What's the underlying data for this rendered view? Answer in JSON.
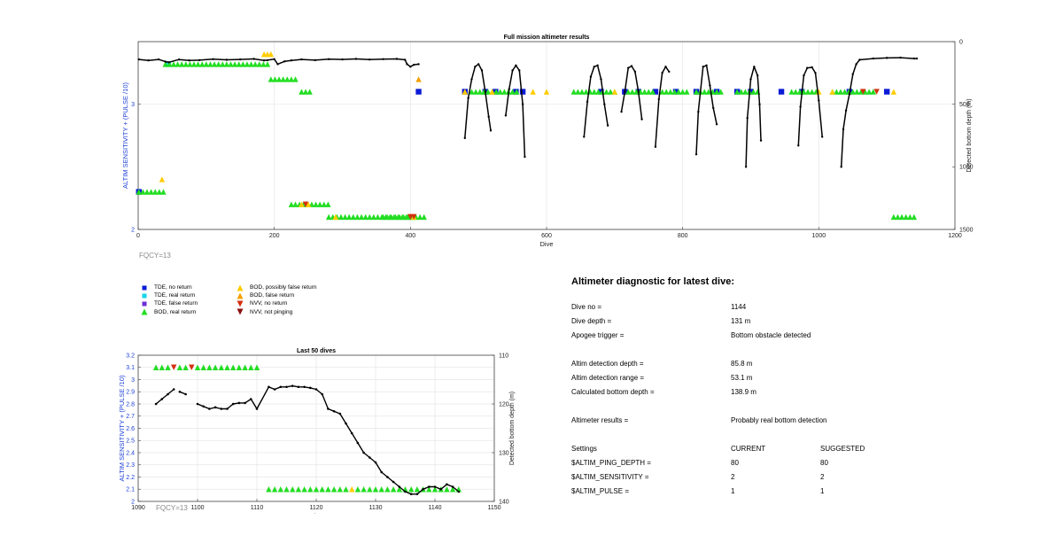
{
  "chart_data": [
    {
      "type": "scatter",
      "title": "Full mission altimeter results",
      "xlabel": "Dive",
      "ylabel": "ALTIM SENSITIVITY + (PULSE /10)",
      "y2label": "Detected bottom depth (m)",
      "xlim": [
        0,
        1200
      ],
      "ylim": [
        2,
        3.5
      ],
      "y2lim": [
        1500,
        0
      ],
      "y2_reversed": true,
      "xticks": [
        0,
        200,
        400,
        600,
        800,
        1000,
        1200
      ],
      "yticks": [
        2,
        3
      ],
      "y2ticks": [
        0,
        500,
        1000,
        1500
      ],
      "grid": true,
      "bottom_depth_segments": [
        [
          [
            1,
            142
          ],
          [
            15,
            150
          ],
          [
            30,
            142
          ],
          [
            40,
            160
          ],
          [
            45,
            165
          ],
          [
            60,
            143
          ],
          [
            75,
            150
          ],
          [
            90,
            148
          ],
          [
            110,
            140
          ],
          [
            130,
            145
          ],
          [
            150,
            142
          ],
          [
            170,
            138
          ],
          [
            185,
            150
          ],
          [
            190,
            148
          ],
          [
            200,
            140
          ],
          [
            205,
            180
          ],
          [
            215,
            158
          ],
          [
            225,
            150
          ],
          [
            240,
            142
          ],
          [
            260,
            148
          ],
          [
            280,
            140
          ],
          [
            300,
            142
          ],
          [
            320,
            138
          ],
          [
            340,
            143
          ],
          [
            360,
            140
          ],
          [
            380,
            138
          ],
          [
            392,
            145
          ],
          [
            395,
            180
          ],
          [
            400,
            200
          ],
          [
            405,
            185
          ],
          [
            412,
            180
          ]
        ],
        [
          [
            480,
            770
          ],
          [
            485,
            450
          ],
          [
            490,
            300
          ],
          [
            495,
            200
          ],
          [
            500,
            180
          ],
          [
            505,
            230
          ],
          [
            510,
            400
          ],
          [
            515,
            600
          ],
          [
            518,
            710
          ]
        ],
        [
          [
            540,
            590
          ],
          [
            545,
            380
          ],
          [
            550,
            230
          ],
          [
            555,
            190
          ],
          [
            560,
            230
          ],
          [
            565,
            500
          ],
          [
            568,
            920
          ]
        ],
        [
          [
            655,
            760
          ],
          [
            660,
            480
          ],
          [
            665,
            280
          ],
          [
            670,
            200
          ],
          [
            675,
            190
          ],
          [
            680,
            300
          ],
          [
            685,
            500
          ],
          [
            690,
            670
          ]
        ],
        [
          [
            710,
            560
          ],
          [
            715,
            400
          ],
          [
            720,
            210
          ],
          [
            725,
            195
          ],
          [
            730,
            240
          ],
          [
            735,
            400
          ],
          [
            740,
            620
          ]
        ],
        [
          [
            760,
            840
          ],
          [
            765,
            460
          ],
          [
            770,
            250
          ],
          [
            775,
            200
          ],
          [
            780,
            240
          ]
        ],
        [
          [
            820,
            900
          ],
          [
            823,
            560
          ],
          [
            830,
            200
          ],
          [
            835,
            190
          ],
          [
            840,
            350
          ],
          [
            845,
            530
          ],
          [
            850,
            660
          ]
        ],
        [
          [
            893,
            1000
          ],
          [
            895,
            610
          ],
          [
            900,
            300
          ],
          [
            905,
            200
          ],
          [
            910,
            270
          ],
          [
            913,
            500
          ],
          [
            915,
            790
          ]
        ],
        [
          [
            970,
            830
          ],
          [
            973,
            520
          ],
          [
            978,
            270
          ],
          [
            983,
            210
          ],
          [
            990,
            205
          ],
          [
            995,
            250
          ],
          [
            1000,
            470
          ],
          [
            1005,
            760
          ]
        ],
        [
          [
            1033,
            1000
          ],
          [
            1036,
            700
          ],
          [
            1040,
            550
          ],
          [
            1045,
            420
          ],
          [
            1050,
            260
          ],
          [
            1055,
            180
          ],
          [
            1060,
            145
          ],
          [
            1080,
            135
          ],
          [
            1100,
            130
          ],
          [
            1120,
            128
          ],
          [
            1140,
            135
          ],
          [
            1144,
            135
          ]
        ]
      ],
      "markers": [
        {
          "kind": "tde_real",
          "x": [
            44
          ],
          "y": [
            3.32
          ]
        },
        {
          "kind": "tde_no",
          "x": [
            1,
            412,
            480,
            510,
            525,
            555,
            565,
            680,
            715,
            735,
            760,
            790,
            820,
            850,
            880,
            900,
            945,
            975,
            1045,
            1100
          ],
          "y": [
            2.3,
            3.1,
            3.1,
            3.1,
            3.1,
            3.1,
            3.1,
            3.1,
            3.1,
            3.1,
            3.1,
            3.1,
            3.1,
            3.1,
            3.1,
            3.1,
            3.1,
            3.1,
            3.1,
            3.1
          ]
        },
        {
          "kind": "bod_real_run",
          "x_ranges": [
            [
              40,
              190
            ],
            [
              195,
              235
            ],
            [
              240,
              255
            ],
            [
              360,
              420
            ],
            [
              490,
              560
            ],
            [
              640,
              700
            ],
            [
              720,
              760
            ],
            [
              770,
              810
            ],
            [
              820,
              860
            ],
            [
              880,
              910
            ],
            [
              960,
              1000
            ],
            [
              1020,
              1080
            ],
            [
              1110,
              1145
            ]
          ],
          "y": [
            3.32,
            3.2,
            3.1,
            2.1,
            3.1,
            3.1,
            3.1,
            3.1,
            3.1,
            3.1,
            3.1,
            3.1,
            2.1
          ]
        },
        {
          "kind": "bod_real_run_low",
          "x_ranges": [
            [
              1,
              40
            ],
            [
              225,
              280
            ],
            [
              280,
              410
            ]
          ],
          "y": [
            2.3,
            2.2,
            2.1
          ]
        },
        {
          "kind": "bod_possibly_false",
          "x": [
            35,
            185,
            190,
            195,
            240,
            250,
            290,
            405,
            480,
            520,
            580,
            600,
            700,
            1000,
            1020,
            1110
          ],
          "y": [
            2.4,
            3.4,
            3.4,
            3.4,
            2.2,
            2.2,
            2.1,
            2.1,
            3.1,
            3.1,
            3.1,
            3.1,
            3.1,
            3.1,
            3.1,
            3.1
          ]
        },
        {
          "kind": "bod_false",
          "x": [
            412
          ],
          "y": [
            3.2
          ]
        },
        {
          "kind": "nvv_no_return",
          "x": [
            246,
            400,
            405,
            1065,
            1085
          ],
          "y": [
            2.2,
            2.1,
            2.1,
            3.1,
            3.1
          ]
        }
      ]
    },
    {
      "type": "scatter",
      "title": "Last 50 dives",
      "xlabel": "Dive",
      "ylabel": "ALTIM SENSITIVITY + (PULSE /10)",
      "y2label": "Detected bottom depth (m)",
      "xlim": [
        1090,
        1150
      ],
      "ylim": [
        2,
        3.2
      ],
      "y2lim": [
        140,
        110
      ],
      "y2_reversed": true,
      "xticks": [
        1090,
        1100,
        1110,
        1120,
        1130,
        1140,
        1150
      ],
      "yticks": [
        2,
        2.1,
        2.2,
        2.3,
        2.4,
        2.5,
        2.6,
        2.7,
        2.8,
        2.9,
        3,
        3.1,
        3.2
      ],
      "y2ticks": [
        110,
        120,
        130,
        140
      ],
      "grid": true,
      "bottom_depth_segments": [
        [
          [
            1093,
            120
          ],
          [
            1094,
            119
          ],
          [
            1095,
            118
          ],
          [
            1096,
            117
          ]
        ],
        [
          [
            1097,
            117.5
          ],
          [
            1098,
            118
          ]
        ],
        [
          [
            1100,
            120
          ],
          [
            1101,
            120.5
          ],
          [
            1102,
            121
          ],
          [
            1103,
            120.7
          ],
          [
            1104,
            121
          ],
          [
            1105,
            121
          ],
          [
            1106,
            120
          ],
          [
            1107,
            119.8
          ],
          [
            1108,
            119.8
          ],
          [
            1109,
            119
          ],
          [
            1110,
            121
          ],
          [
            1112,
            116.5
          ],
          [
            1113,
            117
          ],
          [
            1114,
            116.5
          ],
          [
            1115,
            116.5
          ],
          [
            1116,
            116.3
          ],
          [
            1117,
            116.5
          ],
          [
            1118,
            116.5
          ],
          [
            1119,
            116.7
          ],
          [
            1120,
            117
          ],
          [
            1121,
            118
          ],
          [
            1122,
            121
          ],
          [
            1123,
            121.5
          ],
          [
            1124,
            122
          ],
          [
            1125,
            124
          ],
          [
            1126,
            126
          ],
          [
            1127,
            128
          ],
          [
            1128,
            130
          ],
          [
            1129,
            131
          ],
          [
            1130,
            132
          ],
          [
            1131,
            134
          ],
          [
            1132,
            135
          ],
          [
            1133,
            136
          ],
          [
            1134,
            137
          ],
          [
            1135,
            138
          ],
          [
            1136,
            138.5
          ],
          [
            1137,
            138.5
          ],
          [
            1138,
            137.5
          ],
          [
            1139,
            137
          ],
          [
            1140,
            137
          ],
          [
            1141,
            137.5
          ],
          [
            1142,
            136.5
          ],
          [
            1143,
            137
          ],
          [
            1144,
            138
          ]
        ]
      ],
      "markers": [
        {
          "kind": "bod_real",
          "x": [
            1093,
            1094,
            1095,
            1097,
            1098,
            1100,
            1101,
            1102,
            1103,
            1104,
            1105,
            1106,
            1107,
            1108,
            1109,
            1110
          ],
          "y": [
            3.1,
            3.1,
            3.1,
            3.1,
            3.1,
            3.1,
            3.1,
            3.1,
            3.1,
            3.1,
            3.1,
            3.1,
            3.1,
            3.1,
            3.1,
            3.1
          ]
        },
        {
          "kind": "nvv_no_return",
          "x": [
            1096,
            1099
          ],
          "y": [
            3.1,
            3.1
          ]
        },
        {
          "kind": "bod_real",
          "x": [
            1112,
            1113,
            1114,
            1115,
            1116,
            1117,
            1118,
            1119,
            1120,
            1121,
            1122,
            1123,
            1124,
            1125,
            1127,
            1128,
            1129,
            1130,
            1131,
            1132,
            1133,
            1134,
            1135,
            1136,
            1137,
            1138,
            1139,
            1140,
            1141,
            1142,
            1143,
            1144
          ],
          "y": [
            2.1,
            2.1,
            2.1,
            2.1,
            2.1,
            2.1,
            2.1,
            2.1,
            2.1,
            2.1,
            2.1,
            2.1,
            2.1,
            2.1,
            2.1,
            2.1,
            2.1,
            2.1,
            2.1,
            2.1,
            2.1,
            2.1,
            2.1,
            2.1,
            2.1,
            2.1,
            2.1,
            2.1,
            2.1,
            2.1,
            2.1,
            2.1
          ]
        },
        {
          "kind": "bod_possibly_false",
          "x": [
            1126
          ],
          "y": [
            2.1
          ]
        }
      ]
    }
  ],
  "colors": {
    "line": "#000000",
    "tde_no_return": "#0b1bd6",
    "tde_real_return": "#15d6e6",
    "tde_false_return": "#6a2fd6",
    "bod_real_return": "#22dd22",
    "bod_possibly_false": "#ffcc00",
    "bod_false_return": "#f5a000",
    "nvv_no_return": "#d43010",
    "nvv_not_pinging": "#8b1010",
    "axis_blue": "#1b3fd6",
    "grid": "#e6e6e6"
  },
  "fqcy_main": "FQCY=13",
  "fqcy_small": "FQCY=13",
  "legend": {
    "col1": [
      {
        "icon": "tde-no-return-icon",
        "color_key": "tde_no_return",
        "shape": "square",
        "label": "TDE, no return"
      },
      {
        "icon": "tde-real-return-icon",
        "color_key": "tde_real_return",
        "shape": "square",
        "label": "TDE, real return"
      },
      {
        "icon": "tde-false-return-icon",
        "color_key": "tde_false_return",
        "shape": "square",
        "label": "TDE, false return"
      },
      {
        "icon": "bod-real-return-icon",
        "color_key": "bod_real_return",
        "shape": "triangle-up",
        "label": "BOD, real return"
      }
    ],
    "col2": [
      {
        "icon": "bod-possibly-false-icon",
        "color_key": "bod_possibly_false",
        "shape": "triangle-up",
        "label": "BOD, possibly false return"
      },
      {
        "icon": "bod-false-return-icon",
        "color_key": "bod_false_return",
        "shape": "triangle-up",
        "label": "BOD, false return"
      },
      {
        "icon": "nvv-no-return-icon",
        "color_key": "nvv_no_return",
        "shape": "triangle-down",
        "label": "NVV, no return"
      },
      {
        "icon": "nvv-not-pinging-icon",
        "color_key": "nvv_not_pinging",
        "shape": "triangle-down",
        "label": "NVV, not pinging"
      }
    ]
  },
  "diagnostic": {
    "title": "Altimeter diagnostic for latest dive:",
    "dive_no_label": "Dive no =",
    "dive_no": "1144",
    "dive_depth_label": "Dive depth =",
    "dive_depth": "131 m",
    "apogee_label": "Apogee trigger =",
    "apogee": "Bottom obstacle detected",
    "det_depth_label": "Altim detection depth =",
    "det_depth": "85.8 m",
    "det_range_label": "Altim detection range =",
    "det_range": "53.1 m",
    "calc_depth_label": "Calculated bottom depth =",
    "calc_depth": "138.9 m",
    "results_label": "Altimeter results =",
    "results": "Probably real bottom detection",
    "settings_label": "Settings",
    "current_label": "CURRENT",
    "suggested_label": "SUGGESTED",
    "settings": [
      {
        "name": "$ALTIM_PING_DEPTH =",
        "current": "80",
        "suggested": "80"
      },
      {
        "name": "$ALTIM_SENSITIVITY =",
        "current": "2",
        "suggested": "2"
      },
      {
        "name": "$ALTIM_PULSE =",
        "current": "1",
        "suggested": "1"
      }
    ]
  }
}
